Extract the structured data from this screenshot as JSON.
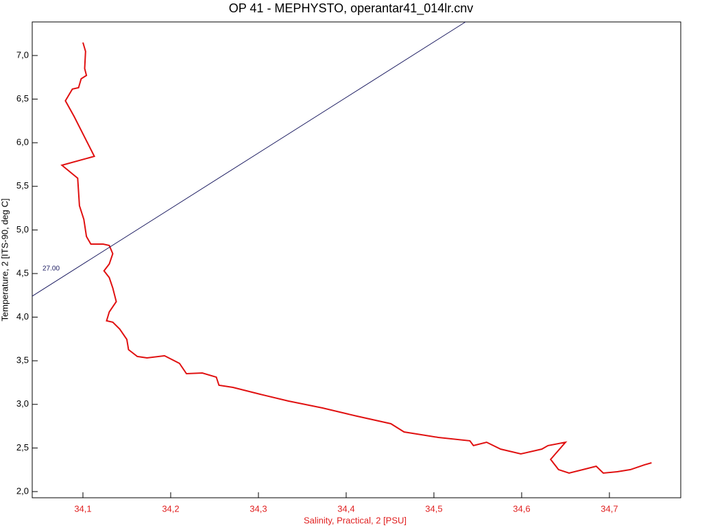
{
  "chart_data": {
    "type": "line",
    "title": "OP 41 - MEPHYSTO, operantar41_014lr.cnv",
    "xlabel": "Salinity, Practical, 2 [PSU]",
    "ylabel": "Temperature, 2 [ITS-90, deg C]",
    "xlim": [
      34.0422,
      34.7813
    ],
    "ylim": [
      1.929,
      7.385
    ],
    "xticks": [
      {
        "value": 34.1,
        "label": "34,1"
      },
      {
        "value": 34.2,
        "label": "34,2"
      },
      {
        "value": 34.3,
        "label": "34,3"
      },
      {
        "value": 34.4,
        "label": "34,4"
      },
      {
        "value": 34.5,
        "label": "34,5"
      },
      {
        "value": 34.6,
        "label": "34,6"
      },
      {
        "value": 34.7,
        "label": "34,7"
      }
    ],
    "yticks": [
      {
        "value": 2.0,
        "label": "2,0"
      },
      {
        "value": 2.5,
        "label": "2,5"
      },
      {
        "value": 3.0,
        "label": "3,0"
      },
      {
        "value": 3.5,
        "label": "3,5"
      },
      {
        "value": 4.0,
        "label": "4,0"
      },
      {
        "value": 4.5,
        "label": "4,5"
      },
      {
        "value": 5.0,
        "label": "5,0"
      },
      {
        "value": 5.5,
        "label": "5,5"
      },
      {
        "value": 6.0,
        "label": "6,0"
      },
      {
        "value": 6.5,
        "label": "6,5"
      },
      {
        "value": 7.0,
        "label": "7,0"
      }
    ],
    "xtick_color": "#e02020",
    "ytick_color": "#000000",
    "series": [
      {
        "color": "#e01010",
        "x": [
          34.1,
          34.103,
          34.102,
          34.104,
          34.098,
          34.095,
          34.088,
          34.08,
          34.09,
          34.113,
          34.076,
          34.094,
          34.096,
          34.101,
          34.104,
          34.109,
          34.123,
          34.13,
          34.134,
          34.13,
          34.124,
          34.13,
          34.134,
          34.138,
          34.13,
          34.127,
          34.134,
          34.142,
          34.15,
          34.152,
          34.162,
          34.173,
          34.193,
          34.21,
          34.218,
          34.236,
          34.252,
          34.255,
          34.271,
          34.302,
          34.334,
          34.373,
          34.412,
          34.451,
          34.466,
          34.505,
          34.541,
          34.545,
          34.56,
          34.576,
          34.599,
          34.623,
          34.63,
          34.65,
          34.633,
          34.642,
          34.654,
          34.67,
          34.685,
          34.693,
          34.709,
          34.724,
          34.74,
          34.748
        ],
        "values": [
          7.149,
          7.047,
          6.851,
          6.772,
          6.733,
          6.631,
          6.615,
          6.481,
          6.3,
          5.844,
          5.742,
          5.593,
          5.278,
          5.121,
          4.925,
          4.838,
          4.838,
          4.822,
          4.728,
          4.61,
          4.531,
          4.453,
          4.335,
          4.178,
          4.06,
          3.958,
          3.942,
          3.863,
          3.745,
          3.627,
          3.549,
          3.533,
          3.557,
          3.47,
          3.352,
          3.36,
          3.313,
          3.219,
          3.195,
          3.116,
          3.038,
          2.959,
          2.865,
          2.778,
          2.684,
          2.621,
          2.582,
          2.527,
          2.566,
          2.487,
          2.432,
          2.487,
          2.527,
          2.566,
          2.369,
          2.252,
          2.212,
          2.252,
          2.291,
          2.212,
          2.228,
          2.252,
          2.307,
          2.33
        ]
      },
      {
        "color": "#1a1a60",
        "label": "27.00",
        "x": [
          34.0422,
          34.536
        ],
        "values": [
          4.241,
          7.385
        ]
      }
    ]
  }
}
